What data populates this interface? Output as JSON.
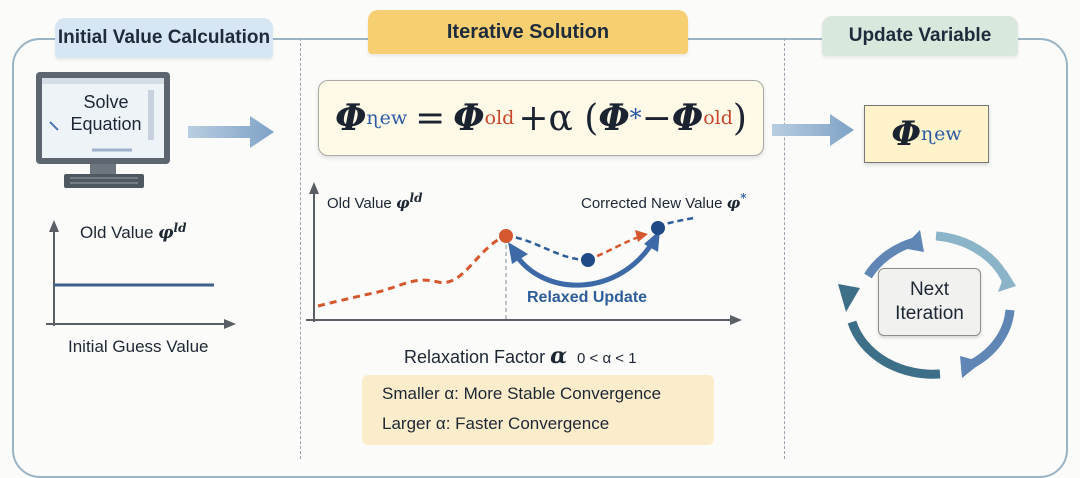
{
  "panels": {
    "initial": {
      "tab_label": "Initial Value Calculation",
      "monitor_line1": "Solve",
      "monitor_line2": "Equation",
      "graph_title_text": "Old Value ",
      "graph_title_symbol": "φ",
      "graph_title_sup": "ld",
      "x_label": "Initial Guess Value"
    },
    "iterative": {
      "tab_label": "Iterative Solution",
      "formula": {
        "lhs": "Φ",
        "lhs_sup": "ɳew",
        "equals": "=",
        "term1": "Φ",
        "term1_sup": "old",
        "plus_alpha": "+α (",
        "term2": "Φ",
        "term2_sup": "*",
        "minus": "− ",
        "term3": "Φ",
        "term3_sup": "old",
        "close": " )"
      },
      "graph_left_label_text": "Old Value ",
      "graph_left_label_symbol": "φ",
      "graph_left_label_sup": "ld",
      "graph_right_label_text": "Corrected New Value ",
      "graph_right_label_symbol": "φ",
      "graph_right_label_sup": "*",
      "relaxed_update_label": "Relaxed Update",
      "relaxation_text": "Relaxation Factor ",
      "relaxation_symbol": "α",
      "relaxation_range": "0 < α < 1",
      "note_smaller_symbol": "Smaller α:",
      "note_smaller_text": " More Stable Convergence",
      "note_larger_symbol": "Larger α:",
      "note_larger_text": "  Faster Convergence"
    },
    "update": {
      "tab_label": "Update Variable",
      "result_symbol": "Φ",
      "result_sup": "ɳew",
      "cycle_line1": "Next",
      "cycle_line2": "Iteration"
    }
  },
  "colors": {
    "accent_orange": "#d4572e",
    "accent_blue": "#2b5aa3",
    "frame": "#9ab4c6",
    "tab_yellow": "#f7cf73",
    "note_bg": "#fbeccb"
  },
  "icons": [
    "monitor-icon",
    "arrow-right-icon",
    "cycle-arrows-icon"
  ]
}
